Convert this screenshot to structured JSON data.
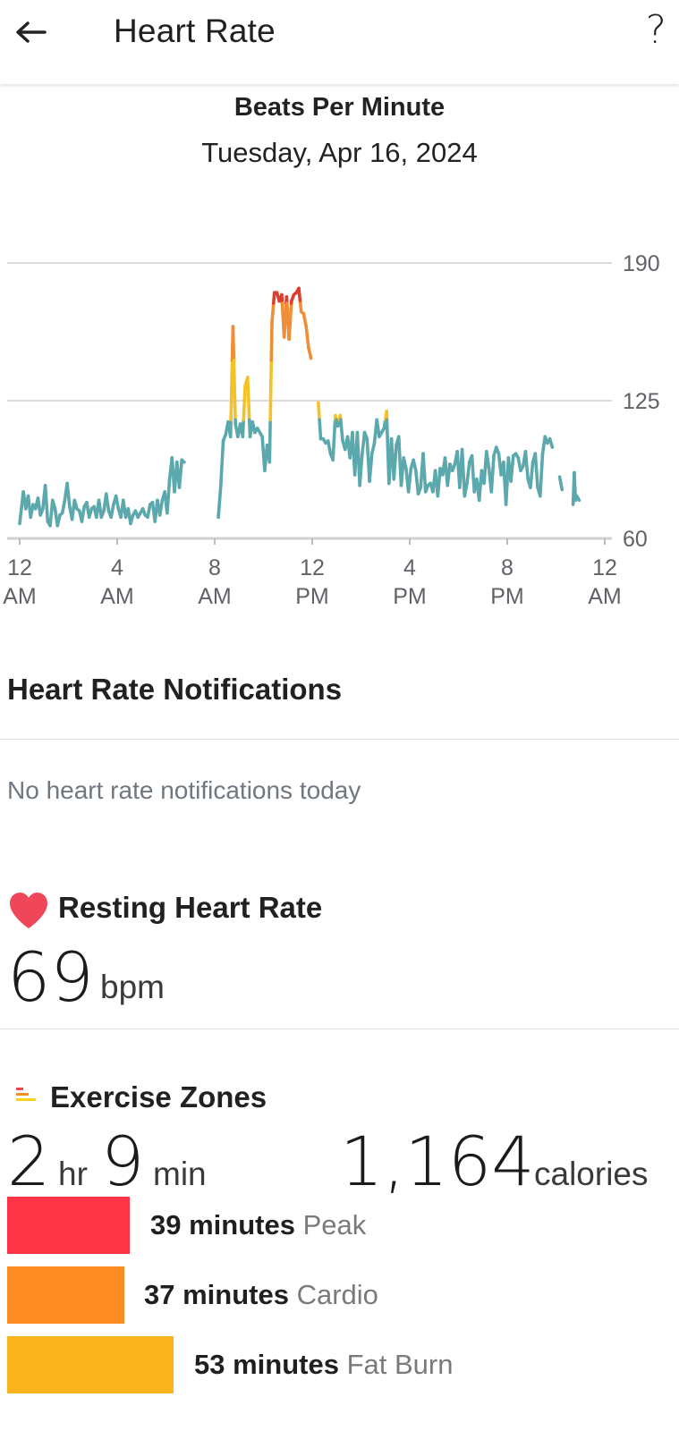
{
  "header": {
    "title": "Heart Rate",
    "back_icon": "arrow-left-icon",
    "help_label": "?"
  },
  "chart_header": {
    "title": "Beats Per Minute",
    "date": "Tuesday, Apr 16, 2024"
  },
  "chart_data": {
    "type": "line",
    "title": "Beats Per Minute",
    "y_ticks": [
      "190",
      "125",
      "60"
    ],
    "ylim": [
      60,
      190
    ],
    "xlim": [
      0,
      24
    ],
    "x_ticks": [
      {
        "hour": 0,
        "line1": "12",
        "line2": "AM"
      },
      {
        "hour": 4,
        "line1": "4",
        "line2": "AM"
      },
      {
        "hour": 8,
        "line1": "8",
        "line2": "AM"
      },
      {
        "hour": 12,
        "line1": "12",
        "line2": "PM"
      },
      {
        "hour": 16,
        "line1": "4",
        "line2": "PM"
      },
      {
        "hour": 20,
        "line1": "8",
        "line2": "PM"
      },
      {
        "hour": 24,
        "line1": "12",
        "line2": "AM"
      }
    ],
    "zone_colors": {
      "normal": "#5ba8ad",
      "fat_burn": "#f5c129",
      "cardio": "#ee8e36",
      "peak": "#e03e2d"
    },
    "zone_thresholds": {
      "fat_burn": 116,
      "cardio": 144,
      "peak": 171
    },
    "segments": [
      {
        "x": [
          0.0,
          0.15,
          0.25,
          0.35,
          0.45,
          0.55,
          0.65,
          0.75,
          0.85,
          0.95,
          1.05,
          1.15,
          1.25,
          1.35,
          1.45,
          1.55,
          1.65,
          1.75,
          1.85,
          1.95,
          2.05,
          2.15,
          2.25,
          2.35,
          2.45,
          2.55,
          2.65,
          2.75,
          2.85,
          2.95,
          3.05,
          3.15,
          3.25,
          3.35,
          3.45,
          3.55,
          3.65,
          3.75,
          3.85,
          3.95,
          4.05,
          4.15,
          4.25,
          4.35,
          4.45,
          4.55,
          4.65,
          4.75,
          4.85,
          4.95,
          5.05,
          5.15,
          5.25,
          5.35,
          5.45,
          5.55,
          5.65,
          5.75,
          5.85,
          5.95,
          6.05,
          6.15,
          6.25,
          6.35,
          6.45,
          6.55,
          6.65,
          6.75
        ],
        "y": [
          67,
          82,
          74,
          80,
          70,
          76,
          74,
          79,
          71,
          74,
          85,
          68,
          66,
          78,
          74,
          66,
          71,
          72,
          78,
          86,
          75,
          69,
          78,
          74,
          73,
          68,
          75,
          77,
          70,
          74,
          75,
          70,
          78,
          70,
          73,
          81,
          73,
          70,
          76,
          80,
          74,
          70,
          78,
          70,
          74,
          67,
          71,
          73,
          70,
          72,
          74,
          71,
          70,
          76,
          77,
          68,
          78,
          71,
          78,
          82,
          72,
          88,
          98,
          82,
          96,
          84,
          97,
          96
        ]
      },
      {
        "x": [
          8.15,
          8.25,
          8.35,
          8.45,
          8.55,
          8.65,
          8.75,
          8.85,
          8.95,
          9.05,
          9.15,
          9.25,
          9.35,
          9.45,
          9.55,
          9.65,
          9.75,
          9.85,
          9.95,
          10.05,
          10.15,
          10.25,
          10.35,
          10.45,
          10.55,
          10.65,
          10.75,
          10.85,
          10.95,
          11.05,
          11.15,
          11.25,
          11.35,
          11.45,
          11.55,
          11.65,
          11.75,
          11.85,
          11.95
        ],
        "y": [
          70,
          85,
          106,
          109,
          115,
          108,
          160,
          114,
          108,
          114,
          108,
          132,
          136,
          108,
          115,
          110,
          112,
          110,
          108,
          92,
          104,
          96,
          162,
          176,
          176,
          172,
          175,
          155,
          174,
          154,
          172,
          175,
          176,
          178,
          167,
          166,
          160,
          150,
          145
        ]
      },
      {
        "x": [
          12.25,
          12.35,
          12.45,
          12.55,
          12.65,
          12.75,
          12.85,
          12.95,
          13.05,
          13.15,
          13.25,
          13.35,
          13.45,
          13.55,
          13.65,
          13.75,
          13.85,
          13.95,
          14.05,
          14.15,
          14.25,
          14.35,
          14.45,
          14.55,
          14.65,
          14.75,
          14.85,
          14.95,
          15.05,
          15.15,
          15.25,
          15.35,
          15.45,
          15.55,
          15.65,
          15.75,
          15.85,
          15.95,
          16.05,
          16.15,
          16.25,
          16.35,
          16.45,
          16.55,
          16.65,
          16.75,
          16.85,
          16.95,
          17.05,
          17.15,
          17.25,
          17.35,
          17.45,
          17.55,
          17.65,
          17.75,
          17.85,
          17.95,
          18.05,
          18.15,
          18.25,
          18.35,
          18.45,
          18.55,
          18.65,
          18.75,
          18.85,
          18.95,
          19.05,
          19.15,
          19.25,
          19.35,
          19.45,
          19.55,
          19.65,
          19.75,
          19.85,
          19.95,
          20.05,
          20.15,
          20.25,
          20.35,
          20.45,
          20.55,
          20.65,
          20.75,
          20.85,
          20.95,
          21.05,
          21.15,
          21.25,
          21.35,
          21.45,
          21.55,
          21.65,
          21.75,
          21.85,
          21.95,
          22.05,
          22.15,
          22.25
        ],
        "y": [
          124,
          107,
          107,
          105,
          106,
          100,
          97,
          118,
          113,
          118,
          106,
          102,
          108,
          98,
          110,
          90,
          110,
          85,
          100,
          110,
          107,
          87,
          100,
          105,
          116,
          108,
          110,
          112,
          120,
          86,
          107,
          88,
          104,
          108,
          85,
          98,
          93,
          82,
          93,
          97,
          92,
          81,
          84,
          100,
          82,
          85,
          86,
          82,
          92,
          80,
          93,
          90,
          98,
          85,
          95,
          92,
          95,
          101,
          84,
          102,
          80,
          86,
          96,
          99,
          82,
          88,
          78,
          92,
          86,
          101,
          93,
          82,
          99,
          103,
          100,
          90,
          96,
          76,
          98,
          87,
          99,
          100,
          98,
          92,
          94,
          101,
          88,
          84,
          96,
          100,
          84,
          80,
          100,
          108,
          105,
          107,
          103,
          null,
          null,
          89,
          83
        ]
      },
      {
        "x": [
          22.7,
          22.75,
          22.8,
          22.85,
          22.9,
          22.95
        ],
        "y": [
          76,
          91,
          78,
          80,
          79,
          78
        ]
      }
    ]
  },
  "notifications": {
    "title": "Heart Rate Notifications",
    "empty_text": "No heart rate notifications today"
  },
  "resting": {
    "title": "Resting Heart Rate",
    "icon": "heart-icon",
    "value": "69",
    "unit": "bpm"
  },
  "zones": {
    "title": "Exercise Zones",
    "icon": "zones-bars-icon",
    "hours_value": "2",
    "hours_unit": "hr",
    "minutes_value": "9",
    "minutes_unit": "min",
    "calories_value": "1,164",
    "calories_unit": "calories",
    "rows": [
      {
        "minutes_label": "39 minutes",
        "name": "Peak",
        "minutes": 39,
        "color": "#fd3346"
      },
      {
        "minutes_label": "37 minutes",
        "name": "Cardio",
        "minutes": 37,
        "color": "#fb8b22"
      },
      {
        "minutes_label": "53 minutes",
        "name": "Fat Burn",
        "minutes": 53,
        "color": "#fcb41e"
      }
    ]
  }
}
